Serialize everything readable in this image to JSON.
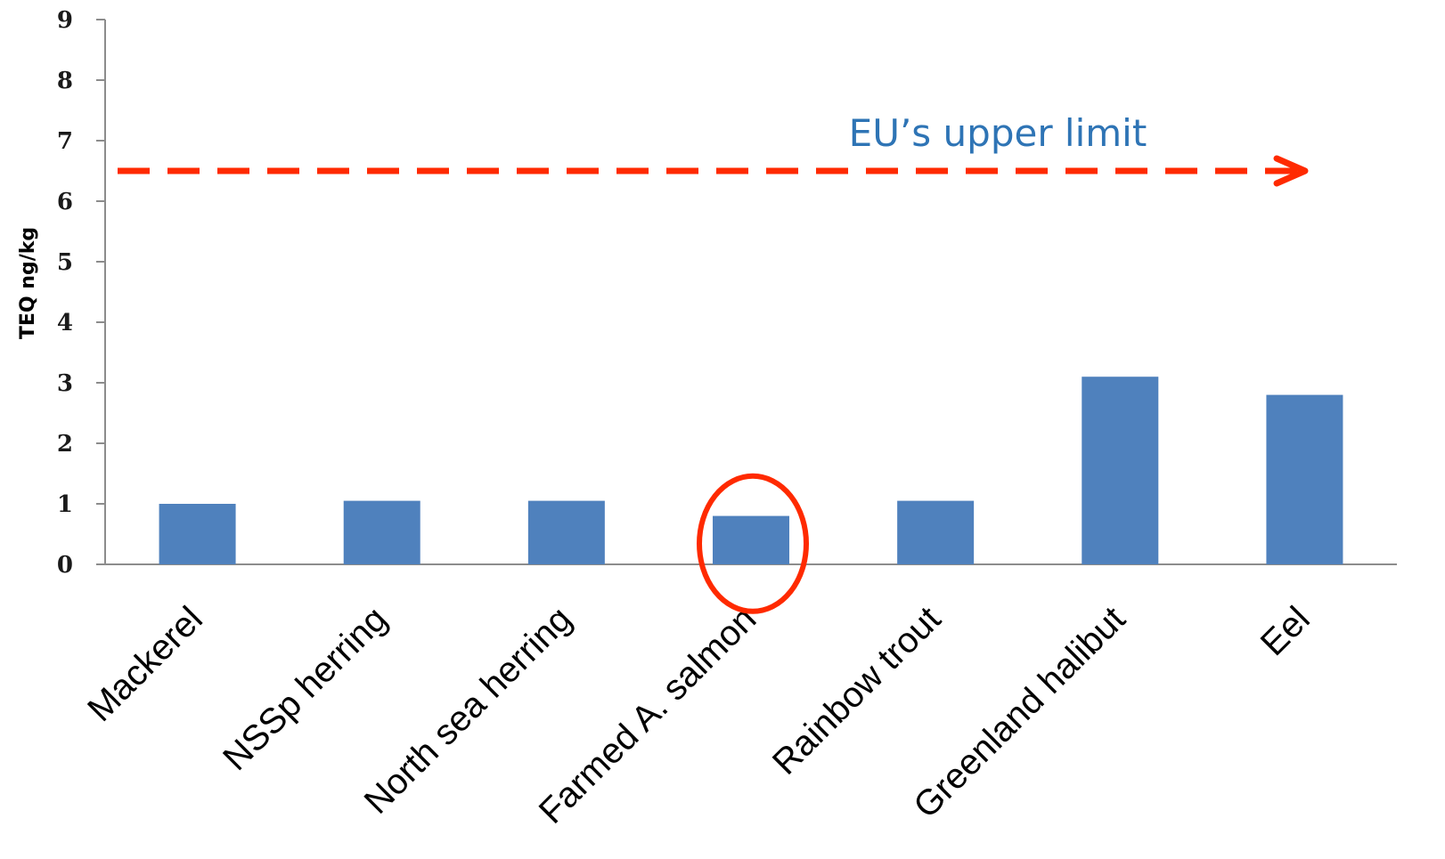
{
  "chart_data": {
    "type": "bar",
    "ylabel": "TEQ ng/kg",
    "ylim": [
      0,
      9
    ],
    "yticks": [
      "0",
      "1",
      "2",
      "3",
      "4",
      "5",
      "6",
      "7",
      "8",
      "9"
    ],
    "categories": [
      "Mackerel",
      "NSSp herring",
      "North sea herring",
      "Farmed A. salmon",
      "Rainbow trout",
      "Greenland halibut",
      "Eel"
    ],
    "values": [
      1.0,
      1.05,
      1.05,
      0.8,
      1.05,
      3.1,
      2.8
    ],
    "bar_color": "#4f81bd",
    "reference_line": {
      "label": "EU’s upper limit",
      "value": 6.5,
      "color": "#ff2a00",
      "label_color": "#2e74b5"
    },
    "highlight": {
      "category": "Farmed A. salmon",
      "color": "#ff2a00"
    },
    "grid": false
  }
}
